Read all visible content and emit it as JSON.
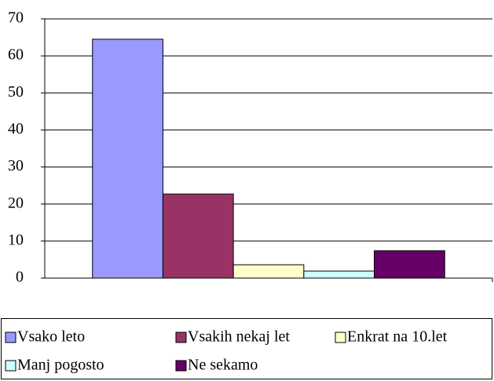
{
  "chart_data": {
    "type": "bar",
    "categories": [
      null
    ],
    "series": [
      {
        "name": "Vsako leto",
        "color": "#9999ff",
        "values": [
          64.5
        ]
      },
      {
        "name": "Vsakih nekaj let",
        "color": "#993366",
        "values": [
          22.7
        ]
      },
      {
        "name": "Enkrat na 10.let",
        "color": "#ffffcc",
        "values": [
          3.6
        ]
      },
      {
        "name": "Manj pogosto",
        "color": "#ccffff",
        "values": [
          1.9
        ]
      },
      {
        "name": "Ne sekamo",
        "color": "#660066",
        "values": [
          7.4
        ]
      }
    ],
    "ylim": [
      0,
      70
    ],
    "yticks": [
      0,
      10,
      20,
      30,
      40,
      50,
      60,
      70
    ],
    "grid": true,
    "legend": "bottom"
  }
}
